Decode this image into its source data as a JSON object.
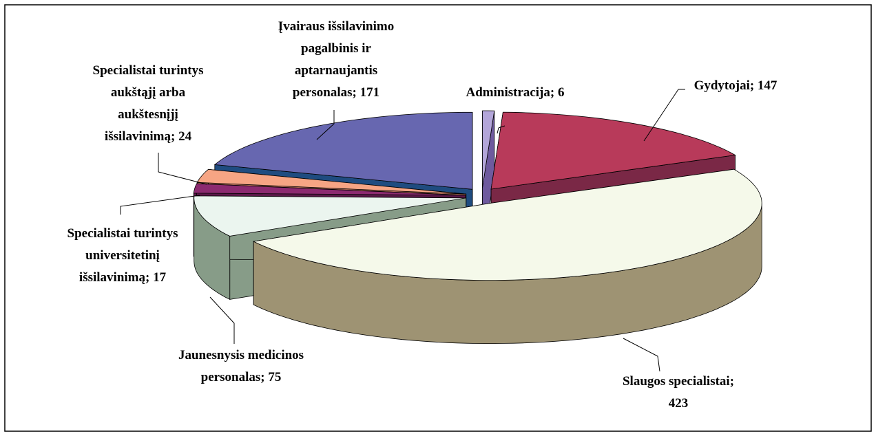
{
  "chart_data": {
    "type": "pie3d",
    "values": [
      6,
      147,
      423,
      75,
      17,
      24,
      171
    ],
    "value_labels": [
      [
        "Administracija; 6"
      ],
      [
        "Gydytojai; 147"
      ],
      [
        "Slaugos specialistai;",
        "423"
      ],
      [
        "Jaunesnysis medicinos",
        "personalas; 75"
      ],
      [
        "Specialistai turintys",
        "universitetinį",
        "išsilavinimą; 17"
      ],
      [
        "Specialistai turintys",
        "aukštąjį arba",
        "aukštesnįjį",
        "išsilavinimą; 24"
      ],
      [
        "Įvairaus išsilavinimo",
        "pagalbinis ir",
        "aptarnaujantis",
        "personalas; 171"
      ]
    ],
    "colors": [
      "#b3a6d9",
      "#b83a5a",
      "#f5f9ea",
      "#ebf5ef",
      "#8c2a70",
      "#f6a584",
      "#6767b0"
    ],
    "side_colors": [
      "#6e5a9e",
      "#7a2846",
      "#9e9373",
      "#879c88",
      "#5a1848",
      "#b87058",
      "#1f4c80"
    ]
  }
}
